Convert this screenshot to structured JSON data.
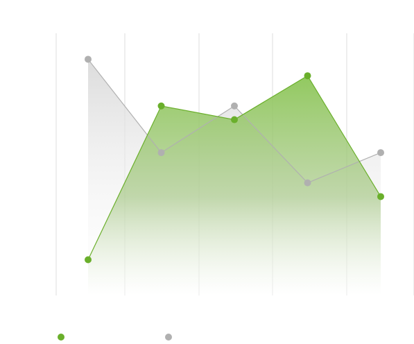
{
  "chart_data": {
    "type": "area",
    "title": "",
    "xlabel": "",
    "ylabel": "",
    "x": [
      1,
      2,
      3,
      4,
      5
    ],
    "ylim": [
      0,
      100
    ],
    "grid": "vertical",
    "legend": "bottom-left",
    "series": [
      {
        "color": "#6aaf2b",
        "values": [
          13,
          69,
          64,
          80,
          36
        ]
      },
      {
        "color": "#b0b0b0",
        "values": [
          86,
          52,
          69,
          41,
          52
        ]
      }
    ]
  }
}
